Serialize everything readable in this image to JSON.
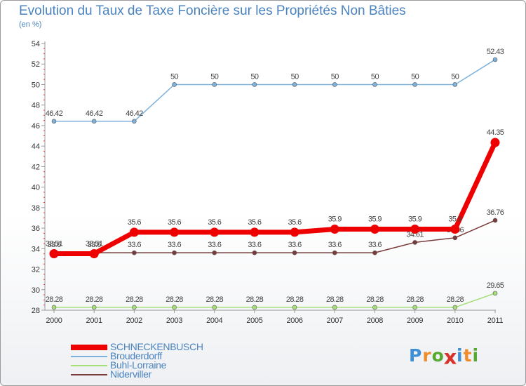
{
  "header": {
    "title": "Evolution du Taux de Taxe Foncière sur les Propriétés Non Bâties",
    "unit": "(en %)"
  },
  "logo": {
    "text": "Proxiti",
    "letters": [
      "P",
      "r",
      "o",
      "x",
      "i",
      "t",
      "i"
    ],
    "colors": [
      "#3f8fd6",
      "#f08c2a",
      "#56a832",
      "#d8322a",
      "#3f8fd6",
      "#f08c2a",
      "#56a832"
    ]
  },
  "chart_data": {
    "type": "line",
    "title": "Evolution du Taux de Taxe Foncière sur les Propriétés Non Bâties",
    "ylabel": "(en %)",
    "xlabel": "",
    "ylim": [
      28,
      54
    ],
    "y_ticks": [
      28,
      30,
      32,
      34,
      36,
      38,
      40,
      42,
      44,
      46,
      48,
      50,
      52,
      54
    ],
    "categories": [
      "2000",
      "2001",
      "2002",
      "2003",
      "2004",
      "2005",
      "2006",
      "2007",
      "2008",
      "2009",
      "2010",
      "2011"
    ],
    "grid": false,
    "legend_position": "bottom-left",
    "series": [
      {
        "name": "Brouderdorff",
        "color": "#7fb2db",
        "values": [
          46.42,
          46.42,
          46.42,
          50,
          50,
          50,
          50,
          50,
          50,
          50,
          50,
          52.43
        ],
        "labels": [
          "46.42",
          "46.42",
          "46.42",
          "50",
          "50",
          "50",
          "50",
          "50",
          "50",
          "50",
          "50",
          "52.43"
        ]
      },
      {
        "name": "Buhl-Lorraine",
        "color": "#a6df7a",
        "values": [
          28.28,
          28.28,
          28.28,
          28.28,
          28.28,
          28.28,
          28.28,
          28.28,
          28.28,
          28.28,
          28.28,
          29.65
        ],
        "labels": [
          "28.28",
          "28.28",
          "28.28",
          "28.28",
          "28.28",
          "28.28",
          "28.28",
          "28.28",
          "28.28",
          "28.28",
          "28.28",
          "29.65"
        ]
      },
      {
        "name": "Niderviller",
        "color": "#7a3b3b",
        "values": [
          33.6,
          33.6,
          33.6,
          33.6,
          33.6,
          33.6,
          33.6,
          33.6,
          33.6,
          34.61,
          35.06,
          36.76
        ],
        "labels": [
          "33.6",
          "33.6",
          "33.6",
          "33.6",
          "33.6",
          "33.6",
          "33.6",
          "33.6",
          "33.6",
          "34.61",
          "35.06",
          "36.76"
        ]
      },
      {
        "name": "SCHNECKENBUSCH",
        "color": "#ee0000",
        "values": [
          33.51,
          33.51,
          35.6,
          35.6,
          35.6,
          35.6,
          35.6,
          35.9,
          35.9,
          35.9,
          35.9,
          44.35
        ],
        "labels": [
          "33.51",
          "33.51",
          "35.6",
          "35.6",
          "35.6",
          "35.6",
          "35.6",
          "35.9",
          "35.9",
          "35.9",
          "35.9",
          "44.35"
        ]
      }
    ],
    "legend": [
      "SCHNECKENBUSCH",
      "Brouderdorff",
      "Buhl-Lorraine",
      "Niderviller"
    ]
  }
}
